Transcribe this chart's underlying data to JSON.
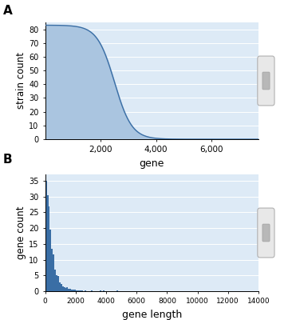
{
  "panel_A": {
    "title": "A",
    "xlabel": "gene",
    "ylabel": "strain count",
    "xlim": [
      0,
      7700
    ],
    "ylim": [
      0,
      85
    ],
    "yticks": [
      0,
      10,
      20,
      30,
      40,
      50,
      60,
      70,
      80
    ],
    "xticks": [
      2000,
      4000,
      6000
    ],
    "xtick_labels": [
      "2,000",
      "4,000",
      "6,000"
    ],
    "line_color": "#3a6ea5",
    "fill_color": "#aac5e0",
    "bg_color": "#ddeaf6",
    "sigmoid_mid": 2500,
    "sigmoid_k": 0.0032
  },
  "panel_B": {
    "title": "B",
    "xlabel": "gene length",
    "ylabel": "gene count",
    "xlim": [
      0,
      14000
    ],
    "ylim": [
      0,
      37
    ],
    "yticks": [
      0,
      5,
      10,
      15,
      20,
      25,
      30,
      35
    ],
    "xticks": [
      0,
      2000,
      4000,
      6000,
      8000,
      10000,
      12000,
      14000
    ],
    "xtick_labels": [
      "0",
      "2000",
      "4000",
      "6000",
      "8000",
      "10000",
      "12000",
      "14000"
    ],
    "bar_color": "#3a6ea5",
    "bg_color": "#ddeaf6"
  },
  "figure_bg": "#ffffff"
}
